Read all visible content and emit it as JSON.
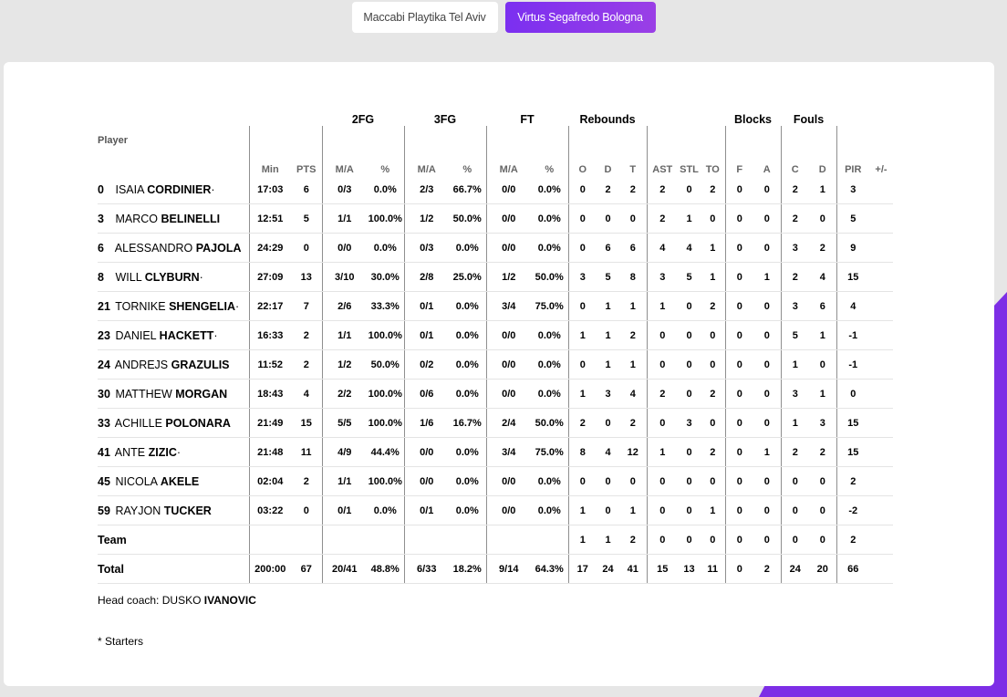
{
  "tabs": [
    {
      "label": "Maccabi Playtika Tel Aviv",
      "active": false
    },
    {
      "label": "Virtus Segafredo Bologna",
      "active": true
    }
  ],
  "colors": {
    "accent": "#7d2ee6"
  },
  "groups": {
    "fg2": "2FG",
    "fg3": "3FG",
    "ft": "FT",
    "rebounds": "Rebounds",
    "blocks": "Blocks",
    "fouls": "Fouls"
  },
  "headers": {
    "player": "Player",
    "min": "Min",
    "pts": "PTS",
    "fg2_ma": "M/A",
    "fg2_pct": "%",
    "fg3_ma": "M/A",
    "fg3_pct": "%",
    "ft_ma": "M/A",
    "ft_pct": "%",
    "reb_o": "O",
    "reb_d": "D",
    "reb_t": "T",
    "ast": "AST",
    "stl": "STL",
    "to": "TO",
    "blk_f": "F",
    "blk_a": "A",
    "foul_c": "C",
    "foul_d": "D",
    "pir": "PIR",
    "pm": "+/-"
  },
  "players": [
    {
      "num": "0",
      "first": "ISAIA",
      "last": "CORDINIER",
      "starter": "·",
      "min": "17:03",
      "pts": "6",
      "fg2_ma": "0/3",
      "fg2_pct": "0.0%",
      "fg3_ma": "2/3",
      "fg3_pct": "66.7%",
      "ft_ma": "0/0",
      "ft_pct": "0.0%",
      "o": "0",
      "d": "2",
      "t": "2",
      "ast": "2",
      "stl": "0",
      "to": "2",
      "bf": "0",
      "ba": "0",
      "fc": "2",
      "fd": "1",
      "pir": "3",
      "pm": ""
    },
    {
      "num": "3",
      "first": "MARCO",
      "last": "BELINELLI",
      "starter": "",
      "min": "12:51",
      "pts": "5",
      "fg2_ma": "1/1",
      "fg2_pct": "100.0%",
      "fg3_ma": "1/2",
      "fg3_pct": "50.0%",
      "ft_ma": "0/0",
      "ft_pct": "0.0%",
      "o": "0",
      "d": "0",
      "t": "0",
      "ast": "2",
      "stl": "1",
      "to": "0",
      "bf": "0",
      "ba": "0",
      "fc": "2",
      "fd": "0",
      "pir": "5",
      "pm": ""
    },
    {
      "num": "6",
      "first": "ALESSANDRO",
      "last": "PAJOLA",
      "starter": "",
      "min": "24:29",
      "pts": "0",
      "fg2_ma": "0/0",
      "fg2_pct": "0.0%",
      "fg3_ma": "0/3",
      "fg3_pct": "0.0%",
      "ft_ma": "0/0",
      "ft_pct": "0.0%",
      "o": "0",
      "d": "6",
      "t": "6",
      "ast": "4",
      "stl": "4",
      "to": "1",
      "bf": "0",
      "ba": "0",
      "fc": "3",
      "fd": "2",
      "pir": "9",
      "pm": ""
    },
    {
      "num": "8",
      "first": "WILL",
      "last": "CLYBURN",
      "starter": "·",
      "min": "27:09",
      "pts": "13",
      "fg2_ma": "3/10",
      "fg2_pct": "30.0%",
      "fg3_ma": "2/8",
      "fg3_pct": "25.0%",
      "ft_ma": "1/2",
      "ft_pct": "50.0%",
      "o": "3",
      "d": "5",
      "t": "8",
      "ast": "3",
      "stl": "5",
      "to": "1",
      "bf": "0",
      "ba": "1",
      "fc": "2",
      "fd": "4",
      "pir": "15",
      "pm": ""
    },
    {
      "num": "21",
      "first": "TORNIKE",
      "last": "SHENGELIA",
      "starter": "·",
      "min": "22:17",
      "pts": "7",
      "fg2_ma": "2/6",
      "fg2_pct": "33.3%",
      "fg3_ma": "0/1",
      "fg3_pct": "0.0%",
      "ft_ma": "3/4",
      "ft_pct": "75.0%",
      "o": "0",
      "d": "1",
      "t": "1",
      "ast": "1",
      "stl": "0",
      "to": "2",
      "bf": "0",
      "ba": "0",
      "fc": "3",
      "fd": "6",
      "pir": "4",
      "pm": ""
    },
    {
      "num": "23",
      "first": "DANIEL",
      "last": "HACKETT",
      "starter": "·",
      "min": "16:33",
      "pts": "2",
      "fg2_ma": "1/1",
      "fg2_pct": "100.0%",
      "fg3_ma": "0/1",
      "fg3_pct": "0.0%",
      "ft_ma": "0/0",
      "ft_pct": "0.0%",
      "o": "1",
      "d": "1",
      "t": "2",
      "ast": "0",
      "stl": "0",
      "to": "0",
      "bf": "0",
      "ba": "0",
      "fc": "5",
      "fd": "1",
      "pir": "-1",
      "pm": ""
    },
    {
      "num": "24",
      "first": "ANDREJS",
      "last": "GRAZULIS",
      "starter": "",
      "min": "11:52",
      "pts": "2",
      "fg2_ma": "1/2",
      "fg2_pct": "50.0%",
      "fg3_ma": "0/2",
      "fg3_pct": "0.0%",
      "ft_ma": "0/0",
      "ft_pct": "0.0%",
      "o": "0",
      "d": "1",
      "t": "1",
      "ast": "0",
      "stl": "0",
      "to": "0",
      "bf": "0",
      "ba": "0",
      "fc": "1",
      "fd": "0",
      "pir": "-1",
      "pm": ""
    },
    {
      "num": "30",
      "first": "MATTHEW",
      "last": "MORGAN",
      "starter": "",
      "min": "18:43",
      "pts": "4",
      "fg2_ma": "2/2",
      "fg2_pct": "100.0%",
      "fg3_ma": "0/6",
      "fg3_pct": "0.0%",
      "ft_ma": "0/0",
      "ft_pct": "0.0%",
      "o": "1",
      "d": "3",
      "t": "4",
      "ast": "2",
      "stl": "0",
      "to": "2",
      "bf": "0",
      "ba": "0",
      "fc": "3",
      "fd": "1",
      "pir": "0",
      "pm": ""
    },
    {
      "num": "33",
      "first": "ACHILLE",
      "last": "POLONARA",
      "starter": "",
      "min": "21:49",
      "pts": "15",
      "fg2_ma": "5/5",
      "fg2_pct": "100.0%",
      "fg3_ma": "1/6",
      "fg3_pct": "16.7%",
      "ft_ma": "2/4",
      "ft_pct": "50.0%",
      "o": "2",
      "d": "0",
      "t": "2",
      "ast": "0",
      "stl": "3",
      "to": "0",
      "bf": "0",
      "ba": "0",
      "fc": "1",
      "fd": "3",
      "pir": "15",
      "pm": ""
    },
    {
      "num": "41",
      "first": "ANTE",
      "last": "ZIZIC",
      "starter": "·",
      "min": "21:48",
      "pts": "11",
      "fg2_ma": "4/9",
      "fg2_pct": "44.4%",
      "fg3_ma": "0/0",
      "fg3_pct": "0.0%",
      "ft_ma": "3/4",
      "ft_pct": "75.0%",
      "o": "8",
      "d": "4",
      "t": "12",
      "ast": "1",
      "stl": "0",
      "to": "2",
      "bf": "0",
      "ba": "1",
      "fc": "2",
      "fd": "2",
      "pir": "15",
      "pm": ""
    },
    {
      "num": "45",
      "first": "NICOLA",
      "last": "AKELE",
      "starter": "",
      "min": "02:04",
      "pts": "2",
      "fg2_ma": "1/1",
      "fg2_pct": "100.0%",
      "fg3_ma": "0/0",
      "fg3_pct": "0.0%",
      "ft_ma": "0/0",
      "ft_pct": "0.0%",
      "o": "0",
      "d": "0",
      "t": "0",
      "ast": "0",
      "stl": "0",
      "to": "0",
      "bf": "0",
      "ba": "0",
      "fc": "0",
      "fd": "0",
      "pir": "2",
      "pm": ""
    },
    {
      "num": "59",
      "first": "RAYJON",
      "last": "TUCKER",
      "starter": "",
      "min": "03:22",
      "pts": "0",
      "fg2_ma": "0/1",
      "fg2_pct": "0.0%",
      "fg3_ma": "0/1",
      "fg3_pct": "0.0%",
      "ft_ma": "0/0",
      "ft_pct": "0.0%",
      "o": "1",
      "d": "0",
      "t": "1",
      "ast": "0",
      "stl": "0",
      "to": "1",
      "bf": "0",
      "ba": "0",
      "fc": "0",
      "fd": "0",
      "pir": "-2",
      "pm": ""
    }
  ],
  "team_row": {
    "label": "Team",
    "min": "",
    "pts": "",
    "fg2_ma": "",
    "fg2_pct": "",
    "fg3_ma": "",
    "fg3_pct": "",
    "ft_ma": "",
    "ft_pct": "",
    "o": "1",
    "d": "1",
    "t": "2",
    "ast": "0",
    "stl": "0",
    "to": "0",
    "bf": "0",
    "ba": "0",
    "fc": "0",
    "fd": "0",
    "pir": "2",
    "pm": ""
  },
  "total_row": {
    "label": "Total",
    "min": "200:00",
    "pts": "67",
    "fg2_ma": "20/41",
    "fg2_pct": "48.8%",
    "fg3_ma": "6/33",
    "fg3_pct": "18.2%",
    "ft_ma": "9/14",
    "ft_pct": "64.3%",
    "o": "17",
    "d": "24",
    "t": "41",
    "ast": "15",
    "stl": "13",
    "to": "11",
    "bf": "0",
    "ba": "2",
    "fc": "24",
    "fd": "20",
    "pir": "66",
    "pm": ""
  },
  "coach": {
    "label": "Head coach:",
    "first": "DUSKO",
    "last": "IVANOVIC"
  },
  "starters_note": "* Starters"
}
